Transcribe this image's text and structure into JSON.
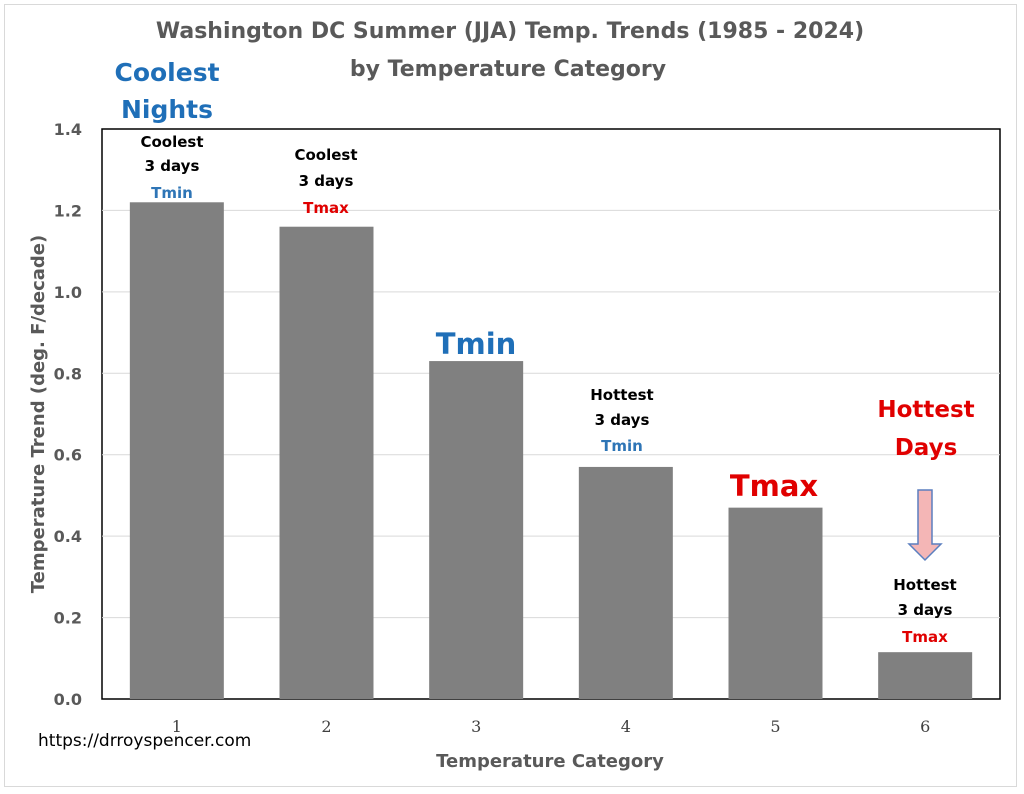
{
  "chart_data": {
    "type": "bar",
    "title": "Washington DC  Summer (JJA) Temp. Trends (1985 - 2024)",
    "subtitle": "by Temperature Category",
    "xlabel": "Temperature  Category",
    "ylabel": "Temperature Trend (deg. F/decade)",
    "categories": [
      "1",
      "2",
      "3",
      "4",
      "5",
      "6"
    ],
    "values": [
      1.22,
      1.16,
      0.83,
      0.57,
      0.47,
      0.115
    ],
    "ylim": [
      0,
      1.4
    ],
    "yticks": [
      "0.0",
      "0.2",
      "0.4",
      "0.6",
      "0.8",
      "1.0",
      "1.2",
      "1.4"
    ],
    "grid": true,
    "bar_color": "#808080",
    "annotations": {
      "coolest_nights": [
        "Coolest",
        "Nights"
      ],
      "bar1": [
        "Coolest",
        "3 days",
        "Tmin"
      ],
      "bar2": [
        "Coolest",
        "3 days",
        "Tmax"
      ],
      "bar3": "Tmin",
      "bar4": [
        "Hottest",
        "3 days",
        "Tmin"
      ],
      "bar5": "Tmax",
      "hottest_days": [
        "Hottest",
        "Days"
      ],
      "bar6": [
        "Hottest",
        "3 days",
        "Tmax"
      ]
    }
  },
  "source_url": "https://drroyspencer.com",
  "colors": {
    "blue": "#1f6fb8",
    "red": "#e00000",
    "arrow_fill": "#f4b6b6",
    "arrow_stroke": "#5b7fbf"
  }
}
